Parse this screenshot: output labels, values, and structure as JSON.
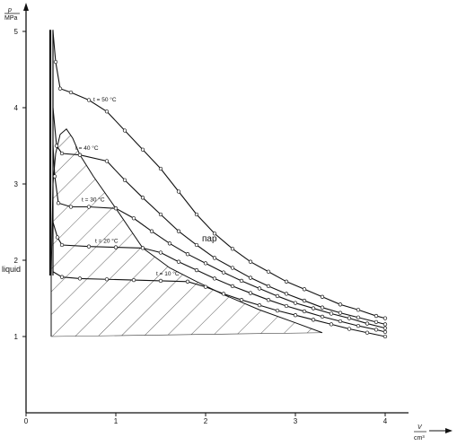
{
  "chart_data": {
    "type": "line",
    "title": "",
    "ylabel_top": "p",
    "ylabel_bottom": "MPa",
    "xlabel_top": "V",
    "xlabel_bottom": "cm³",
    "xlim": [
      0,
      4.6
    ],
    "ylim": [
      0,
      5.2
    ],
    "xticks": [
      "0",
      "1",
      "2",
      "3",
      "4"
    ],
    "yticks": [
      "1",
      "2",
      "3",
      "4",
      "5"
    ],
    "region_labels": {
      "gas": "пар",
      "liquid": "liquid"
    },
    "series": [
      {
        "name": "t = 50 °C",
        "points": [
          [
            0.3,
            5.0
          ],
          [
            0.33,
            4.6
          ],
          [
            0.38,
            4.25
          ],
          [
            0.5,
            4.2
          ],
          [
            0.7,
            4.1
          ],
          [
            0.9,
            3.95
          ],
          [
            1.1,
            3.7
          ],
          [
            1.3,
            3.45
          ],
          [
            1.5,
            3.2
          ],
          [
            1.7,
            2.9
          ],
          [
            1.9,
            2.6
          ],
          [
            2.1,
            2.35
          ],
          [
            2.3,
            2.15
          ],
          [
            2.5,
            1.98
          ],
          [
            2.7,
            1.85
          ],
          [
            2.9,
            1.72
          ],
          [
            3.1,
            1.62
          ],
          [
            3.3,
            1.52
          ],
          [
            3.5,
            1.42
          ],
          [
            3.7,
            1.35
          ],
          [
            3.9,
            1.27
          ],
          [
            4.0,
            1.24
          ]
        ]
      },
      {
        "name": "t = 40 °C",
        "points": [
          [
            0.3,
            4.0
          ],
          [
            0.34,
            3.5
          ],
          [
            0.4,
            3.4
          ],
          [
            0.6,
            3.38
          ],
          [
            0.9,
            3.3
          ],
          [
            1.1,
            3.05
          ],
          [
            1.3,
            2.82
          ],
          [
            1.5,
            2.6
          ],
          [
            1.7,
            2.38
          ],
          [
            1.9,
            2.2
          ],
          [
            2.1,
            2.03
          ],
          [
            2.3,
            1.9
          ],
          [
            2.5,
            1.77
          ],
          [
            2.7,
            1.66
          ],
          [
            2.9,
            1.56
          ],
          [
            3.1,
            1.47
          ],
          [
            3.3,
            1.38
          ],
          [
            3.5,
            1.31
          ],
          [
            3.7,
            1.25
          ],
          [
            3.9,
            1.19
          ],
          [
            4.0,
            1.16
          ]
        ]
      },
      {
        "name": "t = 30 °C",
        "points": [
          [
            0.3,
            3.5
          ],
          [
            0.32,
            3.1
          ],
          [
            0.36,
            2.75
          ],
          [
            0.5,
            2.7
          ],
          [
            0.7,
            2.7
          ],
          [
            1.0,
            2.68
          ],
          [
            1.2,
            2.55
          ],
          [
            1.4,
            2.38
          ],
          [
            1.6,
            2.22
          ],
          [
            1.8,
            2.08
          ],
          [
            2.0,
            1.96
          ],
          [
            2.2,
            1.84
          ],
          [
            2.4,
            1.73
          ],
          [
            2.6,
            1.63
          ],
          [
            2.8,
            1.53
          ],
          [
            3.0,
            1.44
          ],
          [
            3.2,
            1.37
          ],
          [
            3.4,
            1.3
          ],
          [
            3.6,
            1.24
          ],
          [
            3.8,
            1.17
          ],
          [
            4.0,
            1.11
          ]
        ]
      },
      {
        "name": "t = 20 °C",
        "points": [
          [
            0.3,
            2.5
          ],
          [
            0.35,
            2.3
          ],
          [
            0.4,
            2.2
          ],
          [
            0.7,
            2.18
          ],
          [
            1.0,
            2.17
          ],
          [
            1.3,
            2.16
          ],
          [
            1.5,
            2.1
          ],
          [
            1.7,
            1.98
          ],
          [
            1.9,
            1.87
          ],
          [
            2.1,
            1.76
          ],
          [
            2.3,
            1.66
          ],
          [
            2.5,
            1.57
          ],
          [
            2.7,
            1.48
          ],
          [
            2.9,
            1.4
          ],
          [
            3.1,
            1.33
          ],
          [
            3.3,
            1.26
          ],
          [
            3.5,
            1.2
          ],
          [
            3.7,
            1.14
          ],
          [
            3.9,
            1.09
          ],
          [
            4.0,
            1.06
          ]
        ]
      },
      {
        "name": "t = 10 °C",
        "points": [
          [
            0.3,
            1.85
          ],
          [
            0.4,
            1.78
          ],
          [
            0.6,
            1.76
          ],
          [
            0.9,
            1.75
          ],
          [
            1.2,
            1.74
          ],
          [
            1.5,
            1.73
          ],
          [
            1.8,
            1.72
          ],
          [
            2.0,
            1.65
          ],
          [
            2.2,
            1.56
          ],
          [
            2.4,
            1.48
          ],
          [
            2.6,
            1.41
          ],
          [
            2.8,
            1.34
          ],
          [
            3.0,
            1.28
          ],
          [
            3.2,
            1.22
          ],
          [
            3.4,
            1.16
          ],
          [
            3.6,
            1.1
          ],
          [
            3.8,
            1.05
          ],
          [
            4.0,
            1.0
          ]
        ]
      }
    ],
    "dome": [
      [
        0.28,
        1.0
      ],
      [
        0.28,
        1.8
      ],
      [
        0.29,
        2.4
      ],
      [
        0.3,
        3.0
      ],
      [
        0.33,
        3.4
      ],
      [
        0.38,
        3.65
      ],
      [
        0.45,
        3.72
      ],
      [
        0.52,
        3.6
      ],
      [
        0.6,
        3.38
      ],
      [
        0.75,
        3.1
      ],
      [
        1.0,
        2.68
      ],
      [
        1.3,
        2.16
      ],
      [
        1.6,
        1.9
      ],
      [
        1.9,
        1.72
      ],
      [
        2.2,
        1.55
      ],
      [
        2.6,
        1.35
      ],
      [
        3.0,
        1.18
      ],
      [
        3.3,
        1.05
      ]
    ],
    "grid": false,
    "legend": "inline-labels",
    "colors": {
      "line": "#111111",
      "hatch": "#333333",
      "marker_fill": "#ffffff"
    }
  }
}
